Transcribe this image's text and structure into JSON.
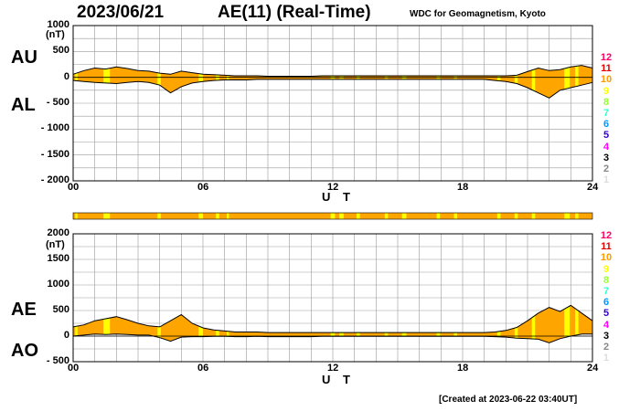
{
  "header": {
    "date": "2023/06/21",
    "title": "AE(11) (Real-Time)",
    "credit": "WDC for Geomagnetism, Kyoto"
  },
  "footer": {
    "created": "[Created at 2023-06-22 03:40UT]"
  },
  "colors": {
    "fill": "#ffa500",
    "highlight": "#ffff00",
    "grid": "#999999",
    "line": "#000000"
  },
  "legend": {
    "items": [
      {
        "label": "12",
        "color": "#ff0066"
      },
      {
        "label": "11",
        "color": "#e00000"
      },
      {
        "label": "10",
        "color": "#ff9900"
      },
      {
        "label": "9",
        "color": "#ffff00"
      },
      {
        "label": "8",
        "color": "#99ff33"
      },
      {
        "label": "7",
        "color": "#33ffcc"
      },
      {
        "label": "6",
        "color": "#0099ff"
      },
      {
        "label": "5",
        "color": "#3300cc"
      },
      {
        "label": "4",
        "color": "#ff00ff"
      },
      {
        "label": "3",
        "color": "#000000"
      },
      {
        "label": "2",
        "color": "#888888"
      },
      {
        "label": "1",
        "color": "#dddddd"
      }
    ]
  },
  "chart_data": [
    {
      "type": "area",
      "panel": "AU/AL",
      "unit": "(nT)",
      "xlabel": "U T",
      "ylim": [
        -2000,
        1000
      ],
      "xlim": [
        0,
        24
      ],
      "grid": true,
      "series_labels": [
        "AU",
        "AL"
      ],
      "y_ticks": [
        {
          "value": 1000,
          "label": "1000"
        },
        {
          "value": 500,
          "label": "500"
        },
        {
          "value": 0,
          "label": "0"
        },
        {
          "value": -500,
          "label": "- 500"
        },
        {
          "value": -1000,
          "label": "- 1000"
        },
        {
          "value": -1500,
          "label": "- 1500"
        },
        {
          "value": -2000,
          "label": "- 2000"
        }
      ],
      "x_ticks": [
        {
          "value": 0,
          "label": "00"
        },
        {
          "value": 6,
          "label": "06"
        },
        {
          "value": 12,
          "label": "12"
        },
        {
          "value": 18,
          "label": "18"
        },
        {
          "value": 24,
          "label": "24"
        }
      ],
      "x": [
        0,
        0.5,
        1,
        1.5,
        2,
        2.5,
        3,
        3.5,
        4,
        4.5,
        5,
        5.5,
        6,
        6.5,
        7,
        7.5,
        8,
        8.5,
        9,
        9.5,
        10,
        10.5,
        11,
        11.5,
        12,
        12.5,
        13,
        13.5,
        14,
        14.5,
        15,
        15.5,
        16,
        16.5,
        17,
        17.5,
        18,
        18.5,
        19,
        19.5,
        20,
        20.5,
        21,
        21.5,
        22,
        22.5,
        23,
        23.5,
        24
      ],
      "upper": [
        60,
        130,
        180,
        160,
        200,
        170,
        130,
        120,
        80,
        60,
        120,
        90,
        60,
        50,
        40,
        30,
        30,
        30,
        20,
        20,
        20,
        20,
        20,
        30,
        30,
        30,
        30,
        30,
        30,
        30,
        30,
        30,
        30,
        30,
        30,
        30,
        30,
        30,
        30,
        30,
        30,
        40,
        110,
        180,
        130,
        150,
        200,
        230,
        180
      ],
      "lower": [
        -60,
        -80,
        -100,
        -110,
        -120,
        -100,
        -80,
        -100,
        -150,
        -300,
        -180,
        -110,
        -80,
        -60,
        -50,
        -50,
        -50,
        -40,
        -40,
        -40,
        -40,
        -40,
        -40,
        -40,
        -40,
        -40,
        -40,
        -40,
        -40,
        -40,
        -40,
        -40,
        -40,
        -40,
        -40,
        -40,
        -40,
        -40,
        -40,
        -60,
        -80,
        -120,
        -200,
        -300,
        -400,
        -250,
        -200,
        -150,
        -100
      ]
    },
    {
      "type": "area",
      "panel": "AE/AO",
      "unit": "(nT)",
      "xlabel": "U T",
      "ylim": [
        -500,
        2000
      ],
      "xlim": [
        0,
        24
      ],
      "grid": true,
      "series_labels": [
        "AE",
        "AO"
      ],
      "y_ticks": [
        {
          "value": 2000,
          "label": "2000"
        },
        {
          "value": 1500,
          "label": "1500"
        },
        {
          "value": 1000,
          "label": "1000"
        },
        {
          "value": 500,
          "label": "500"
        },
        {
          "value": 0,
          "label": "0"
        },
        {
          "value": -500,
          "label": "- 500"
        }
      ],
      "x_ticks": [
        {
          "value": 0,
          "label": "00"
        },
        {
          "value": 6,
          "label": "06"
        },
        {
          "value": 12,
          "label": "12"
        },
        {
          "value": 18,
          "label": "18"
        },
        {
          "value": 24,
          "label": "24"
        }
      ],
      "x": [
        0,
        0.5,
        1,
        1.5,
        2,
        2.5,
        3,
        3.5,
        4,
        4.5,
        5,
        5.5,
        6,
        6.5,
        7,
        7.5,
        8,
        8.5,
        9,
        9.5,
        10,
        10.5,
        11,
        11.5,
        12,
        12.5,
        13,
        13.5,
        14,
        14.5,
        15,
        15.5,
        16,
        16.5,
        17,
        17.5,
        18,
        18.5,
        19,
        19.5,
        20,
        20.5,
        21,
        21.5,
        22,
        22.5,
        23,
        23.5,
        24
      ],
      "ae": [
        180,
        220,
        300,
        340,
        380,
        320,
        250,
        200,
        180,
        300,
        420,
        250,
        160,
        120,
        100,
        80,
        80,
        80,
        70,
        70,
        70,
        70,
        70,
        70,
        70,
        70,
        70,
        70,
        70,
        70,
        70,
        70,
        70,
        70,
        70,
        70,
        70,
        70,
        70,
        80,
        110,
        170,
        300,
        450,
        560,
        480,
        600,
        450,
        300
      ],
      "ao": [
        0,
        20,
        40,
        30,
        40,
        30,
        20,
        20,
        -30,
        -100,
        -20,
        -10,
        -10,
        -5,
        -5,
        -10,
        -10,
        -5,
        -10,
        -10,
        -10,
        -10,
        -10,
        -5,
        -5,
        -5,
        -5,
        -5,
        -5,
        -5,
        -5,
        -5,
        -5,
        -5,
        -5,
        -5,
        -5,
        -5,
        -5,
        -10,
        -20,
        -40,
        -50,
        -60,
        -130,
        -50,
        0,
        40,
        40
      ]
    }
  ],
  "activity_strip": {
    "highlight_ranges": [
      [
        0.1,
        0.2
      ],
      [
        1.4,
        1.7
      ],
      [
        3.9,
        4.05
      ],
      [
        5.8,
        6.0
      ],
      [
        6.6,
        6.75
      ],
      [
        7.1,
        7.2
      ],
      [
        11.9,
        12.1
      ],
      [
        12.3,
        12.5
      ],
      [
        13.1,
        13.25
      ],
      [
        14.4,
        14.55
      ],
      [
        15.2,
        15.4
      ],
      [
        16.8,
        16.95
      ],
      [
        17.6,
        17.75
      ],
      [
        19.6,
        19.75
      ],
      [
        20.4,
        20.55
      ],
      [
        21.2,
        21.35
      ],
      [
        22.7,
        22.95
      ],
      [
        23.2,
        23.35
      ]
    ]
  }
}
